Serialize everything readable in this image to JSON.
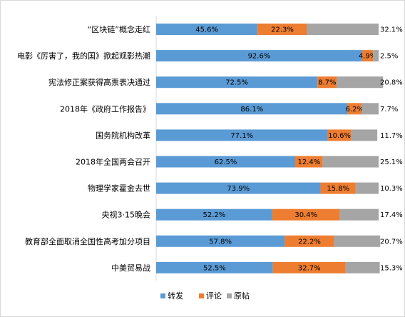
{
  "chart_data": {
    "type": "bar",
    "stacked": true,
    "orientation": "horizontal",
    "percent_stacked": true,
    "categories": [
      "“区块链”概念走红",
      "电影《厉害了，我的国》掀起观影热潮",
      "宪法修正案获得高票表决通过",
      "2018年《政府工作报告》",
      "国务院机构改革",
      "2018年全国两会召开",
      "物理学家霍金去世",
      "央视3·15晚会",
      "教育部全面取消全国性高考加分项目",
      "中美贸易战"
    ],
    "series": [
      {
        "name": "转发",
        "color": "#5b9bd5",
        "values": [
          45.6,
          92.6,
          72.5,
          86.1,
          77.1,
          62.5,
          73.9,
          52.2,
          57.8,
          52.5
        ],
        "labels": [
          "45.6%",
          "92.6%",
          "72.5%",
          "86.1%",
          "77.1%",
          "62.5%",
          "73.9%",
          "52.2%",
          "57.8%",
          "52.5%"
        ]
      },
      {
        "name": "评论",
        "color": "#ed7d31",
        "values": [
          22.3,
          4.9,
          8.7,
          6.2,
          10.6,
          12.4,
          15.8,
          30.4,
          22.2,
          32.7
        ],
        "labels": [
          "22.3%",
          "4.9%",
          "8.7%",
          "6.2%",
          "10.6%",
          "12.4%",
          "15.8%",
          "30.4%",
          "22.2%",
          "32.7%"
        ]
      },
      {
        "name": "原帖",
        "color": "#a5a5a5",
        "values": [
          32.1,
          2.5,
          20.8,
          7.7,
          11.7,
          25.1,
          10.3,
          17.4,
          20.7,
          15.3
        ],
        "labels": [
          "32.1%",
          "2.5%",
          "20.8%",
          "7.7%",
          "11.7%",
          "25.1%",
          "10.3%",
          "17.4%",
          "20.7%",
          "15.3%"
        ]
      }
    ],
    "xlim": [
      0,
      100
    ],
    "grid": false,
    "legend": "bottom"
  }
}
